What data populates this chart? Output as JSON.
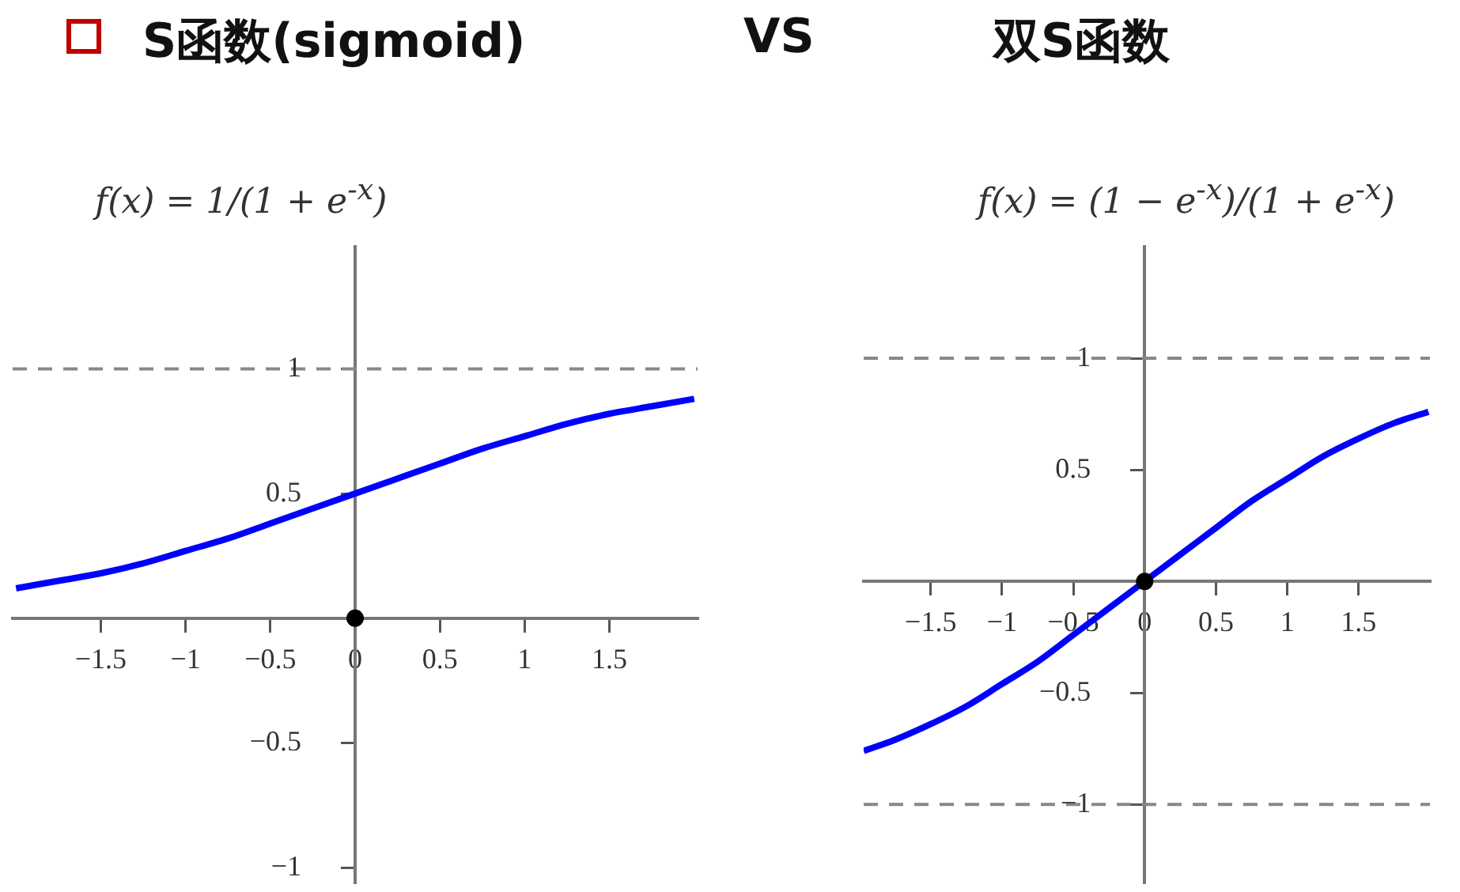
{
  "chart_data": [
    {
      "type": "line",
      "title": "S函数(sigmoid)",
      "annotations": [
        "f(x) = 1/(1 + e$^{-x}$)",
        "VS"
      ],
      "xlim": [
        -2.02,
        2.02
      ],
      "ylim": [
        -1.06,
        1.49
      ],
      "xticks": [
        -1.5,
        -1,
        -0.5,
        0,
        0.5,
        1,
        1.5
      ],
      "yticks": [
        -1,
        -0.5,
        0.5,
        1
      ],
      "grid": false,
      "legend": false,
      "line_style": "solid",
      "ref_lines": [
        {
          "axis": "y",
          "value": 1,
          "color": "#888888",
          "line_style": "dashed"
        }
      ],
      "series": [
        {
          "type": "line",
          "color": "#0000ff",
          "marker": "none",
          "x": [
            -2,
            -1.75,
            -1.5,
            -1.25,
            -1,
            -0.75,
            -0.5,
            -0.25,
            0,
            0.25,
            0.5,
            0.75,
            1,
            1.25,
            1.5,
            1.75,
            2
          ],
          "values": [
            0.12,
            0.15,
            0.18,
            0.22,
            0.27,
            0.32,
            0.38,
            0.44,
            0.5,
            0.56,
            0.62,
            0.68,
            0.73,
            0.78,
            0.82,
            0.85,
            0.88
          ]
        },
        {
          "type": "scatter",
          "color": "#000000",
          "marker": "circle",
          "x": [
            0
          ],
          "values": [
            0
          ]
        }
      ]
    },
    {
      "type": "line",
      "title": "双S函数",
      "annotations": [
        "f(x) = (1 − e$^{-x}$)/(1 + e$^{-x}$)"
      ],
      "xlim": [
        -1.97,
        2.0
      ],
      "ylim": [
        -1.35,
        1.5
      ],
      "xticks": [
        -1.5,
        -1,
        -0.5,
        0,
        0.5,
        1,
        1.5
      ],
      "yticks": [
        -1,
        -0.5,
        0.5,
        1
      ],
      "grid": false,
      "legend": false,
      "line_style": "solid",
      "ref_lines": [
        {
          "axis": "y",
          "value": 1,
          "color": "#888888",
          "line_style": "dashed"
        },
        {
          "axis": "y",
          "value": -1,
          "color": "#888888",
          "line_style": "dashed"
        }
      ],
      "series": [
        {
          "type": "line",
          "color": "#0000ff",
          "marker": "none",
          "x": [
            -1.97,
            -1.75,
            -1.5,
            -1.25,
            -1,
            -0.75,
            -0.5,
            -0.25,
            0,
            0.25,
            0.5,
            0.75,
            1,
            1.25,
            1.5,
            1.75,
            1.99
          ],
          "values": [
            -0.76,
            -0.71,
            -0.64,
            -0.56,
            -0.46,
            -0.36,
            -0.24,
            -0.12,
            0,
            0.12,
            0.24,
            0.36,
            0.46,
            0.56,
            0.64,
            0.71,
            0.76
          ]
        },
        {
          "type": "scatter",
          "color": "#000000",
          "marker": "circle",
          "x": [
            0
          ],
          "values": [
            0
          ]
        }
      ]
    }
  ]
}
